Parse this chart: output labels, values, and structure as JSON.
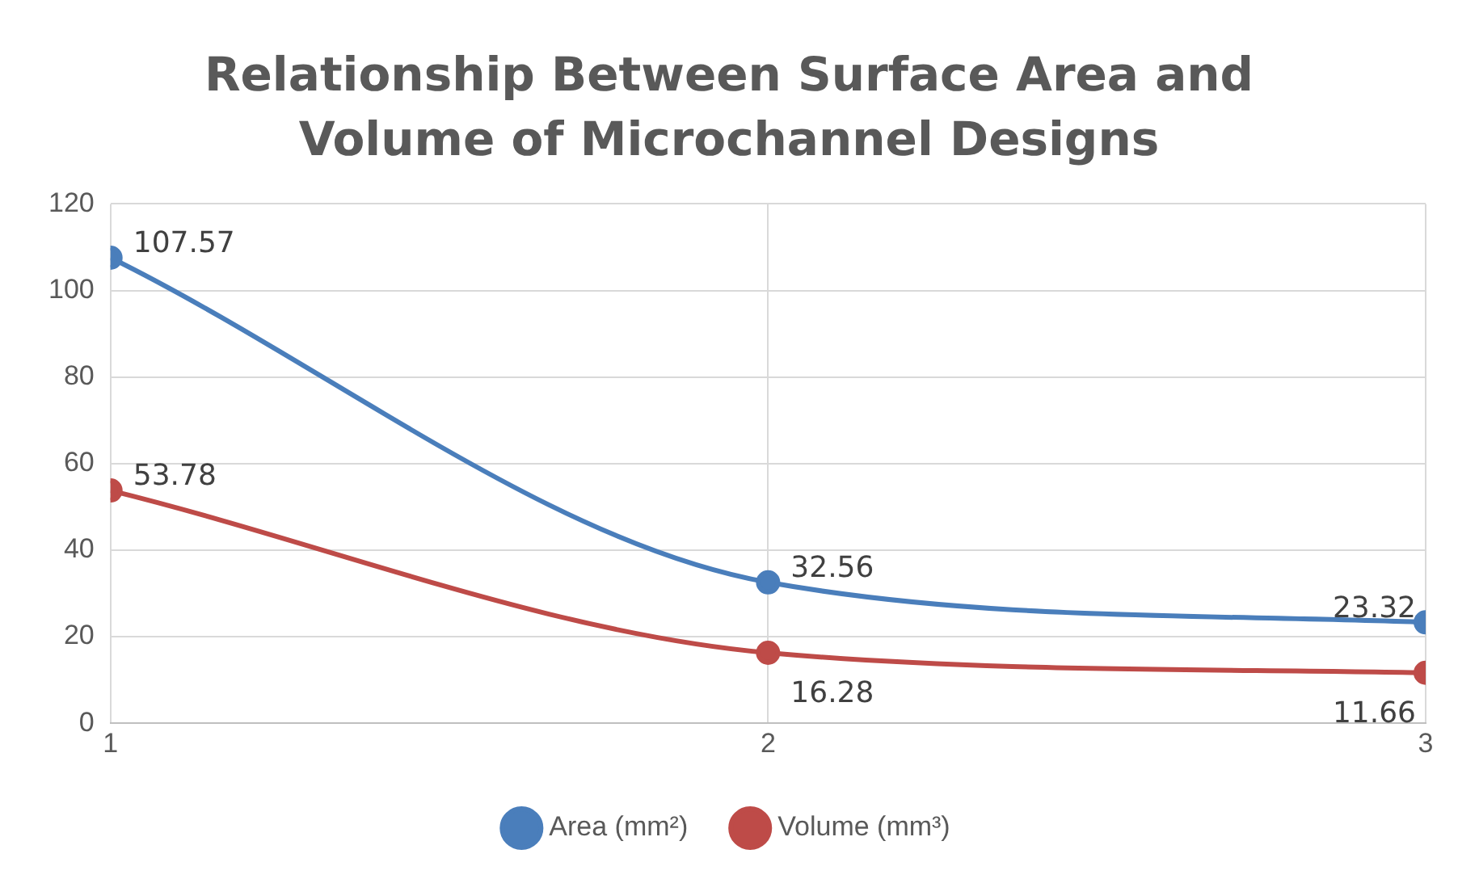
{
  "chart_data": {
    "type": "line",
    "title": "Relationship Between Surface Area and Volume of Microchannel Designs",
    "x": [
      1,
      2,
      3
    ],
    "series": [
      {
        "name": "Area (mm²)",
        "color": "#4a7ebb",
        "values": [
          107.57,
          32.56,
          23.32
        ]
      },
      {
        "name": "Volume (mm³)",
        "color": "#be4b48",
        "values": [
          53.78,
          16.28,
          11.66
        ]
      }
    ],
    "xlim": [
      1,
      3
    ],
    "xticks": [
      1,
      2,
      3
    ],
    "ylim": [
      0,
      120
    ],
    "yticks": [
      0,
      20,
      40,
      60,
      80,
      100,
      120
    ],
    "grid": true,
    "legend": "bottom",
    "marker": "circle",
    "line_style": "solid",
    "data_labels": true
  }
}
